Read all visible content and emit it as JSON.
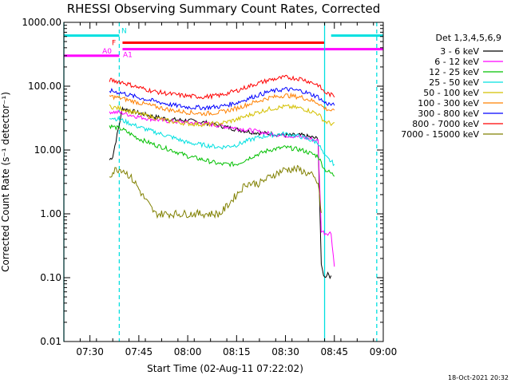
{
  "chart_data": {
    "type": "line",
    "title": "RHESSI Observing Summary Count Rates, Corrected",
    "xlabel": "Start Time (02-Aug-11 07:22:02)",
    "ylabel": "Corrected Count Rate (s⁻¹ detector⁻¹)",
    "y_scale": "log",
    "ylim": [
      0.01,
      1000
    ],
    "xlim": [
      "07:22",
      "09:00"
    ],
    "y_ticks": [
      "0.01",
      "0.10",
      "1.00",
      "10.00",
      "100.00",
      "1000.00"
    ],
    "x_ticks": [
      "07:30",
      "07:45",
      "08:00",
      "08:15",
      "08:30",
      "08:45",
      "09:00"
    ],
    "legend_title": "Det 1,3,4,5,6,9",
    "legend_position": "right",
    "timestamp": "18-Oct-2021 20:32",
    "data_gaps": {
      "start": "07:36",
      "end": "08:46"
    },
    "series": [
      {
        "name": "3 - 6 keV",
        "color": "#000000",
        "x": [
          "07:36",
          "07:37",
          "07:40",
          "07:45",
          "07:50",
          "07:55",
          "08:00",
          "08:05",
          "08:10",
          "08:15",
          "08:20",
          "08:25",
          "08:30",
          "08:35",
          "08:40",
          "08:41",
          "08:42",
          "08:43",
          "08:44"
        ],
        "values": [
          7,
          8,
          45,
          38,
          33,
          30,
          29,
          27,
          24,
          21,
          19,
          18,
          17,
          17,
          15,
          0.15,
          0.1,
          0.12,
          0.1
        ]
      },
      {
        "name": "6 - 12 keV",
        "color": "#ff00ff",
        "x": [
          "07:36",
          "07:40",
          "07:45",
          "07:50",
          "07:55",
          "08:00",
          "08:05",
          "08:10",
          "08:15",
          "08:20",
          "08:25",
          "08:30",
          "08:35",
          "08:40",
          "08:41",
          "08:42",
          "08:44",
          "08:45"
        ],
        "values": [
          40,
          38,
          33,
          30,
          28,
          27,
          26,
          24,
          22,
          20,
          18,
          17,
          16,
          14,
          0.55,
          0.5,
          0.5,
          0.15
        ]
      },
      {
        "name": "12 - 25 keV",
        "color": "#00c000",
        "x": [
          "07:36",
          "07:40",
          "07:45",
          "07:50",
          "07:55",
          "08:00",
          "08:05",
          "08:10",
          "08:15",
          "08:20",
          "08:25",
          "08:30",
          "08:35",
          "08:40",
          "08:42",
          "08:45"
        ],
        "values": [
          24,
          21,
          15,
          12,
          10,
          8,
          7,
          6,
          6,
          8,
          10,
          11,
          10,
          8,
          5,
          4
        ]
      },
      {
        "name": "25 - 50 keV",
        "color": "#00e0e0",
        "x": [
          "07:36",
          "07:40",
          "07:45",
          "07:50",
          "07:55",
          "08:00",
          "08:05",
          "08:10",
          "08:15",
          "08:20",
          "08:25",
          "08:30",
          "08:35",
          "08:40",
          "08:42",
          "08:45"
        ],
        "values": [
          33,
          29,
          23,
          19,
          16,
          13,
          12,
          11,
          12,
          15,
          17,
          18,
          16,
          13,
          8,
          6
        ]
      },
      {
        "name": "50 - 100 keV",
        "color": "#d4c000",
        "x": [
          "07:36",
          "07:40",
          "07:45",
          "07:50",
          "07:55",
          "08:00",
          "08:05",
          "08:10",
          "08:15",
          "08:20",
          "08:25",
          "08:30",
          "08:35",
          "08:40",
          "08:42",
          "08:45"
        ],
        "values": [
          48,
          44,
          37,
          32,
          28,
          26,
          25,
          26,
          30,
          37,
          44,
          48,
          45,
          37,
          28,
          25
        ]
      },
      {
        "name": "100 - 300 keV",
        "color": "#ff8000",
        "x": [
          "07:36",
          "07:40",
          "07:45",
          "07:50",
          "07:55",
          "08:00",
          "08:05",
          "08:10",
          "08:15",
          "08:20",
          "08:25",
          "08:30",
          "08:35",
          "08:40",
          "08:42",
          "08:45"
        ],
        "values": [
          70,
          64,
          55,
          48,
          42,
          39,
          37,
          39,
          45,
          55,
          66,
          72,
          67,
          55,
          45,
          40
        ]
      },
      {
        "name": "300 - 800 keV",
        "color": "#0000ff",
        "x": [
          "07:36",
          "07:40",
          "07:45",
          "07:50",
          "07:55",
          "08:00",
          "08:05",
          "08:10",
          "08:15",
          "08:20",
          "08:25",
          "08:30",
          "08:35",
          "08:40",
          "08:42",
          "08:45"
        ],
        "values": [
          85,
          78,
          66,
          58,
          51,
          47,
          46,
          48,
          55,
          68,
          82,
          90,
          84,
          68,
          55,
          50
        ]
      },
      {
        "name": "800 - 7000 keV",
        "color": "#ff0000",
        "x": [
          "07:36",
          "07:40",
          "07:45",
          "07:50",
          "07:55",
          "08:00",
          "08:05",
          "08:10",
          "08:15",
          "08:20",
          "08:25",
          "08:30",
          "08:35",
          "08:40",
          "08:42",
          "08:45"
        ],
        "values": [
          125,
          115,
          95,
          82,
          75,
          70,
          68,
          72,
          85,
          105,
          125,
          138,
          130,
          105,
          80,
          70
        ]
      },
      {
        "name": "7000 - 15000 keV",
        "color": "#808000",
        "x": [
          "07:36",
          "07:38",
          "07:40",
          "07:42",
          "07:44",
          "07:46",
          "07:50",
          "08:00",
          "08:10",
          "08:15",
          "08:18",
          "08:22",
          "08:26",
          "08:30",
          "08:34",
          "08:38",
          "08:40",
          "08:41"
        ],
        "values": [
          4,
          5,
          5,
          4,
          3,
          2,
          1,
          1,
          1,
          2,
          3,
          3,
          4,
          5,
          5,
          4,
          3,
          1
        ]
      }
    ],
    "flags": [
      {
        "name": "N",
        "color": "#00e0e0",
        "y_level": 620,
        "segments": [
          [
            "07:22",
            "07:39"
          ],
          [
            "08:44",
            "09:00"
          ]
        ]
      },
      {
        "name": "F",
        "color": "#ff0000",
        "y_level": 480,
        "segments": [
          [
            "07:40",
            "08:42"
          ]
        ]
      },
      {
        "name": "A0",
        "color": "#ff00ff",
        "y_level": 300,
        "segments": [
          [
            "07:22",
            "07:39"
          ]
        ]
      },
      {
        "name": "A1",
        "color": "#ff00ff",
        "y_level": 380,
        "segments": [
          [
            "07:40",
            "09:00"
          ]
        ]
      }
    ],
    "vlines": [
      {
        "t": "07:22",
        "color": "#00e0e0",
        "style": "solid"
      },
      {
        "t": "07:39",
        "color": "#00e0e0",
        "style": "dashed"
      },
      {
        "t": "08:42",
        "color": "#00e0e0",
        "style": "solid"
      },
      {
        "t": "08:58",
        "color": "#00e0e0",
        "style": "dashed"
      }
    ]
  }
}
